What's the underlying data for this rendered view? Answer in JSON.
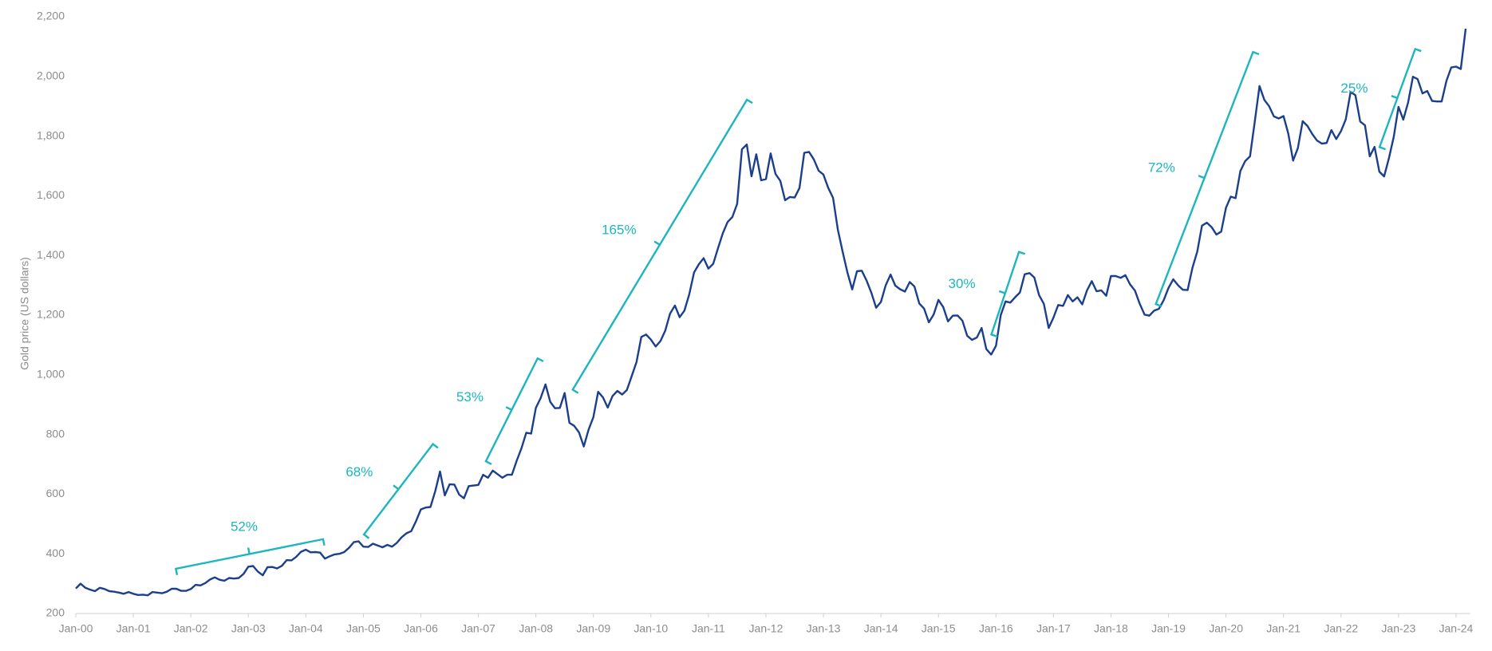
{
  "chart_data": {
    "type": "line",
    "y_label": "Gold price (US dollars)",
    "xlim": [
      2000,
      2024.25
    ],
    "xticks": [
      {
        "value": 2000,
        "label": "Jan-00"
      },
      {
        "value": 2001,
        "label": "Jan-01"
      },
      {
        "value": 2002,
        "label": "Jan-02"
      },
      {
        "value": 2003,
        "label": "Jan-03"
      },
      {
        "value": 2004,
        "label": "Jan-04"
      },
      {
        "value": 2005,
        "label": "Jan-05"
      },
      {
        "value": 2006,
        "label": "Jan-06"
      },
      {
        "value": 2007,
        "label": "Jan-07"
      },
      {
        "value": 2008,
        "label": "Jan-08"
      },
      {
        "value": 2009,
        "label": "Jan-09"
      },
      {
        "value": 2010,
        "label": "Jan-10"
      },
      {
        "value": 2011,
        "label": "Jan-11"
      },
      {
        "value": 2012,
        "label": "Jan-12"
      },
      {
        "value": 2013,
        "label": "Jan-13"
      },
      {
        "value": 2014,
        "label": "Jan-14"
      },
      {
        "value": 2015,
        "label": "Jan-15"
      },
      {
        "value": 2016,
        "label": "Jan-16"
      },
      {
        "value": 2017,
        "label": "Jan-17"
      },
      {
        "value": 2018,
        "label": "Jan-18"
      },
      {
        "value": 2019,
        "label": "Jan-19"
      },
      {
        "value": 2020,
        "label": "Jan-20"
      },
      {
        "value": 2021,
        "label": "Jan-21"
      },
      {
        "value": 2022,
        "label": "Jan-22"
      },
      {
        "value": 2023,
        "label": "Jan-23"
      },
      {
        "value": 2024,
        "label": "Jan-24"
      }
    ],
    "ylim": [
      200,
      2200
    ],
    "yticks": [
      200,
      400,
      600,
      800,
      {
        "value": 1000,
        "label": "1,000"
      },
      {
        "value": 1200,
        "label": "1,200"
      },
      {
        "value": 1400,
        "label": "1,400"
      },
      {
        "value": 1600,
        "label": "1,600"
      },
      {
        "value": 1800,
        "label": "1,800"
      },
      {
        "value": 2000,
        "label": "2,000"
      },
      {
        "value": 2200,
        "label": "2,200"
      }
    ],
    "grid": false,
    "x": [
      2000,
      2000.083,
      2000.167,
      2000.25,
      2000.333,
      2000.417,
      2000.5,
      2000.583,
      2000.667,
      2000.75,
      2000.833,
      2000.917,
      2001,
      2001.083,
      2001.167,
      2001.25,
      2001.333,
      2001.417,
      2001.5,
      2001.583,
      2001.667,
      2001.75,
      2001.833,
      2001.917,
      2002,
      2002.083,
      2002.167,
      2002.25,
      2002.333,
      2002.417,
      2002.5,
      2002.583,
      2002.667,
      2002.75,
      2002.833,
      2002.917,
      2003,
      2003.083,
      2003.167,
      2003.25,
      2003.333,
      2003.417,
      2003.5,
      2003.583,
      2003.667,
      2003.75,
      2003.833,
      2003.917,
      2004,
      2004.083,
      2004.167,
      2004.25,
      2004.333,
      2004.417,
      2004.5,
      2004.583,
      2004.667,
      2004.75,
      2004.833,
      2004.917,
      2005,
      2005.083,
      2005.167,
      2005.25,
      2005.333,
      2005.417,
      2005.5,
      2005.583,
      2005.667,
      2005.75,
      2005.833,
      2005.917,
      2006,
      2006.083,
      2006.167,
      2006.25,
      2006.333,
      2006.417,
      2006.5,
      2006.583,
      2006.667,
      2006.75,
      2006.833,
      2006.917,
      2007,
      2007.083,
      2007.167,
      2007.25,
      2007.333,
      2007.417,
      2007.5,
      2007.583,
      2007.667,
      2007.75,
      2007.833,
      2007.917,
      2008,
      2008.083,
      2008.167,
      2008.25,
      2008.333,
      2008.417,
      2008.5,
      2008.583,
      2008.667,
      2008.75,
      2008.833,
      2008.917,
      2009,
      2009.083,
      2009.167,
      2009.25,
      2009.333,
      2009.417,
      2009.5,
      2009.583,
      2009.667,
      2009.75,
      2009.833,
      2009.917,
      2010,
      2010.083,
      2010.167,
      2010.25,
      2010.333,
      2010.417,
      2010.5,
      2010.583,
      2010.667,
      2010.75,
      2010.833,
      2010.917,
      2011,
      2011.083,
      2011.167,
      2011.25,
      2011.333,
      2011.417,
      2011.5,
      2011.583,
      2011.667,
      2011.75,
      2011.833,
      2011.917,
      2012,
      2012.083,
      2012.167,
      2012.25,
      2012.333,
      2012.417,
      2012.5,
      2012.583,
      2012.667,
      2012.75,
      2012.833,
      2012.917,
      2013,
      2013.083,
      2013.167,
      2013.25,
      2013.333,
      2013.417,
      2013.5,
      2013.583,
      2013.667,
      2013.75,
      2013.833,
      2013.917,
      2014,
      2014.083,
      2014.167,
      2014.25,
      2014.333,
      2014.417,
      2014.5,
      2014.583,
      2014.667,
      2014.75,
      2014.833,
      2014.917,
      2015,
      2015.083,
      2015.167,
      2015.25,
      2015.333,
      2015.417,
      2015.5,
      2015.583,
      2015.667,
      2015.75,
      2015.833,
      2015.917,
      2016,
      2016.083,
      2016.167,
      2016.25,
      2016.333,
      2016.417,
      2016.5,
      2016.583,
      2016.667,
      2016.75,
      2016.833,
      2016.917,
      2017,
      2017.083,
      2017.167,
      2017.25,
      2017.333,
      2017.417,
      2017.5,
      2017.583,
      2017.667,
      2017.75,
      2017.833,
      2017.917,
      2018,
      2018.083,
      2018.167,
      2018.25,
      2018.333,
      2018.417,
      2018.5,
      2018.583,
      2018.667,
      2018.75,
      2018.833,
      2018.917,
      2019,
      2019.083,
      2019.167,
      2019.25,
      2019.333,
      2019.417,
      2019.5,
      2019.583,
      2019.667,
      2019.75,
      2019.833,
      2019.917,
      2020,
      2020.083,
      2020.167,
      2020.25,
      2020.333,
      2020.417,
      2020.5,
      2020.583,
      2020.667,
      2020.75,
      2020.833,
      2020.917,
      2021,
      2021.083,
      2021.167,
      2021.25,
      2021.333,
      2021.417,
      2021.5,
      2021.583,
      2021.667,
      2021.75,
      2021.833,
      2021.917,
      2022,
      2022.083,
      2022.167,
      2022.25,
      2022.333,
      2022.417,
      2022.5,
      2022.583,
      2022.667,
      2022.75,
      2022.833,
      2022.917,
      2023,
      2023.083,
      2023.167,
      2023.25,
      2023.333,
      2023.417,
      2023.5,
      2023.583,
      2023.667,
      2023.75,
      2023.833,
      2023.917,
      2024,
      2024.083,
      2024.167
    ],
    "series": [
      {
        "color": "#1b3f8b",
        "values": [
          284,
          300,
          286,
          280,
          275,
          286,
          282,
          275,
          273,
          270,
          266,
          272,
          266,
          262,
          263,
          261,
          272,
          270,
          268,
          273,
          283,
          283,
          276,
          276,
          282,
          296,
          294,
          302,
          314,
          321,
          313,
          310,
          319,
          317,
          319,
          333,
          357,
          359,
          340,
          328,
          355,
          356,
          351,
          360,
          379,
          378,
          390,
          407,
          414,
          405,
          406,
          404,
          384,
          392,
          398,
          400,
          406,
          420,
          439,
          442,
          424,
          423,
          434,
          428,
          422,
          430,
          424,
          437,
          456,
          469,
          476,
          510,
          549,
          555,
          557,
          610,
          676,
          596,
          633,
          632,
          598,
          586,
          627,
          629,
          631,
          665,
          655,
          679,
          667,
          655,
          665,
          665,
          712,
          754,
          806,
          803,
          889,
          922,
          968,
          909,
          888,
          889,
          939,
          839,
          829,
          807,
          760,
          816,
          858,
          943,
          924,
          890,
          929,
          946,
          934,
          949,
          996,
          1043,
          1127,
          1135,
          1118,
          1095,
          1113,
          1148,
          1205,
          1232,
          1193,
          1215,
          1270,
          1343,
          1370,
          1391,
          1356,
          1372,
          1424,
          1474,
          1512,
          1529,
          1573,
          1756,
          1772,
          1665,
          1739,
          1652,
          1656,
          1742,
          1673,
          1650,
          1585,
          1596,
          1594,
          1626,
          1744,
          1747,
          1722,
          1684,
          1671,
          1627,
          1593,
          1487,
          1414,
          1343,
          1286,
          1347,
          1349,
          1316,
          1275,
          1225,
          1244,
          1300,
          1336,
          1299,
          1287,
          1279,
          1311,
          1296,
          1239,
          1222,
          1176,
          1202,
          1251,
          1227,
          1179,
          1198,
          1199,
          1181,
          1131,
          1117,
          1125,
          1157,
          1086,
          1068,
          1097,
          1200,
          1246,
          1242,
          1260,
          1276,
          1337,
          1341,
          1326,
          1267,
          1238,
          1157,
          1192,
          1234,
          1231,
          1267,
          1246,
          1260,
          1236,
          1283,
          1314,
          1280,
          1283,
          1265,
          1331,
          1331,
          1325,
          1334,
          1303,
          1282,
          1238,
          1202,
          1198,
          1215,
          1221,
          1250,
          1291,
          1320,
          1300,
          1285,
          1284,
          1359,
          1413,
          1500,
          1510,
          1495,
          1470,
          1480,
          1560,
          1597,
          1592,
          1683,
          1716,
          1732,
          1847,
          1968,
          1921,
          1900,
          1866,
          1859,
          1867,
          1808,
          1718,
          1760,
          1850,
          1834,
          1807,
          1785,
          1775,
          1777,
          1820,
          1790,
          1817,
          1856,
          1948,
          1937,
          1849,
          1836,
          1732,
          1764,
          1681,
          1665,
          1726,
          1798,
          1898,
          1855,
          1913,
          1999,
          1991,
          1943,
          1951,
          1918,
          1916,
          1916,
          1985,
          2030,
          2033,
          2025,
          2160
        ]
      }
    ],
    "annotation_color": "#1db5be",
    "annotations": [
      {
        "label": "52%",
        "x0": 2001.74,
        "y0": 350,
        "x1": 2004.3,
        "y1": 449
      },
      {
        "label": "68%",
        "x0": 2005.01,
        "y0": 465,
        "x1": 2006.21,
        "y1": 768
      },
      {
        "label": "53%",
        "x0": 2007.13,
        "y0": 710,
        "x1": 2008.03,
        "y1": 1055
      },
      {
        "label": "165%",
        "x0": 2008.64,
        "y0": 950,
        "x1": 2011.67,
        "y1": 1922
      },
      {
        "label": "30%",
        "x0": 2015.92,
        "y0": 1135,
        "x1": 2016.4,
        "y1": 1412
      },
      {
        "label": "72%",
        "x0": 2018.78,
        "y0": 1237,
        "x1": 2020.47,
        "y1": 2082
      },
      {
        "label": "25%",
        "x0": 2022.67,
        "y0": 1763,
        "x1": 2023.29,
        "y1": 2092
      }
    ]
  }
}
